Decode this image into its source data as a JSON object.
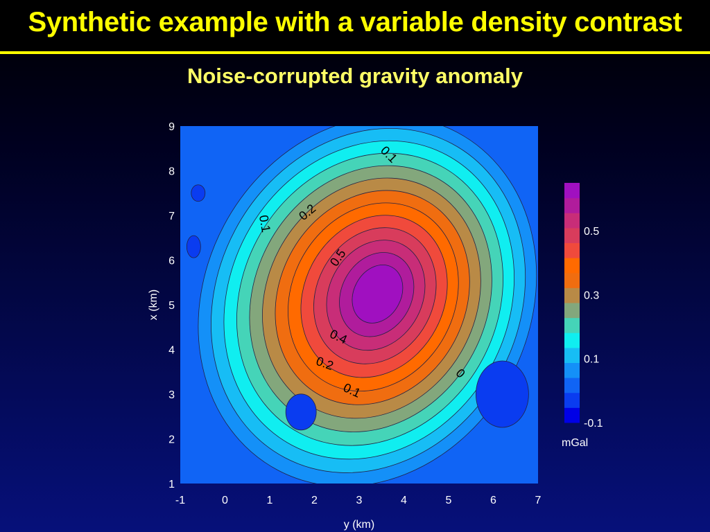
{
  "slide": {
    "title": "Synthetic example with a variable density contrast",
    "subtitle": "Noise-corrupted gravity anomaly"
  },
  "chart_data": {
    "type": "heatmap",
    "title": "Noise-corrupted gravity anomaly",
    "xlabel": "y (km)",
    "ylabel": "x (km)",
    "xlim": [
      -1,
      7
    ],
    "ylim": [
      1,
      9
    ],
    "x_ticks": [
      "-1",
      "0",
      "1",
      "2",
      "3",
      "4",
      "5",
      "6",
      "7"
    ],
    "y_ticks": [
      "1",
      "2",
      "3",
      "4",
      "5",
      "6",
      "7",
      "8",
      "9"
    ],
    "peak": {
      "y_km": 3.3,
      "x_km": 5.3,
      "value": 0.65
    },
    "contour_levels": [
      -0.1,
      -0.05,
      0,
      0.05,
      0.1,
      0.15,
      0.2,
      0.25,
      0.3,
      0.35,
      0.4,
      0.45,
      0.5,
      0.55,
      0.6,
      0.65
    ],
    "contour_labels": [
      {
        "text": "0.1",
        "y_km": 3.6,
        "x_km": 8.3,
        "angle": 45
      },
      {
        "text": "0.1",
        "y_km": 0.8,
        "x_km": 6.8,
        "angle": 80
      },
      {
        "text": "0.2",
        "y_km": 1.9,
        "x_km": 7.0,
        "angle": -40
      },
      {
        "text": "0.5",
        "y_km": 2.6,
        "x_km": 6.0,
        "angle": -55
      },
      {
        "text": "0.4",
        "y_km": 2.5,
        "x_km": 4.2,
        "angle": 25
      },
      {
        "text": "0.2",
        "y_km": 2.2,
        "x_km": 3.6,
        "angle": 20
      },
      {
        "text": "0.1",
        "y_km": 2.8,
        "x_km": 3.0,
        "angle": 25
      },
      {
        "text": "0",
        "y_km": 5.2,
        "x_km": 3.4,
        "angle": 45
      }
    ],
    "colorbar": {
      "colors": [
        "#0000e6",
        "#0a3cf0",
        "#1064f5",
        "#1490f8",
        "#17bdf5",
        "#10eef0",
        "#45d4b8",
        "#83a77c",
        "#b98a46",
        "#f06d10",
        "#ff6a00",
        "#f04a3c",
        "#d83c5c",
        "#c82d78",
        "#b01c9c",
        "#a010c0"
      ],
      "tick_labels": [
        "-0.1",
        "0.1",
        "0.3",
        "0.5"
      ],
      "unit": "mGal"
    }
  }
}
